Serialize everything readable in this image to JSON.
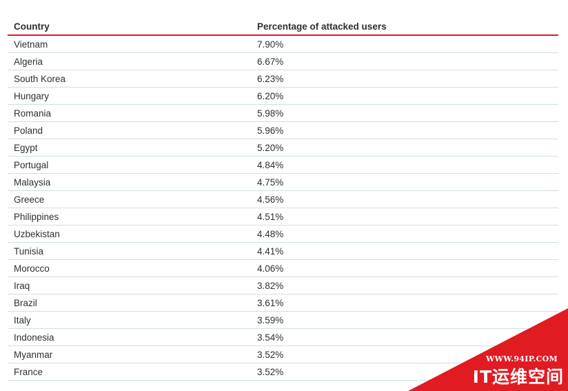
{
  "table": {
    "headers": {
      "country": "Country",
      "percentage": "Percentage of attacked users"
    },
    "rows": [
      {
        "country": "Vietnam",
        "percentage": "7.90%"
      },
      {
        "country": "Algeria",
        "percentage": "6.67%"
      },
      {
        "country": "South Korea",
        "percentage": "6.23%"
      },
      {
        "country": "Hungary",
        "percentage": "6.20%"
      },
      {
        "country": "Romania",
        "percentage": "5.98%"
      },
      {
        "country": "Poland",
        "percentage": "5.96%"
      },
      {
        "country": "Egypt",
        "percentage": "5.20%"
      },
      {
        "country": "Portugal",
        "percentage": "4.84%"
      },
      {
        "country": "Malaysia",
        "percentage": "4.75%"
      },
      {
        "country": "Greece",
        "percentage": "4.56%"
      },
      {
        "country": "Philippines",
        "percentage": "4.51%"
      },
      {
        "country": "Uzbekistan",
        "percentage": "4.48%"
      },
      {
        "country": "Tunisia",
        "percentage": "4.41%"
      },
      {
        "country": "Morocco",
        "percentage": "4.06%"
      },
      {
        "country": "Iraq",
        "percentage": "3.82%"
      },
      {
        "country": "Brazil",
        "percentage": "3.61%"
      },
      {
        "country": "Italy",
        "percentage": "3.59%"
      },
      {
        "country": "Indonesia",
        "percentage": "3.54%"
      },
      {
        "country": "Myanmar",
        "percentage": "3.52%"
      },
      {
        "country": "France",
        "percentage": "3.52%"
      }
    ]
  },
  "watermark": {
    "url": "WWW.94IP.COM",
    "brand": "IT运维空间"
  },
  "colors": {
    "header_rule": "#d71f2b",
    "row_divider": "#cfdfe3",
    "watermark_red": "#e11b22"
  }
}
